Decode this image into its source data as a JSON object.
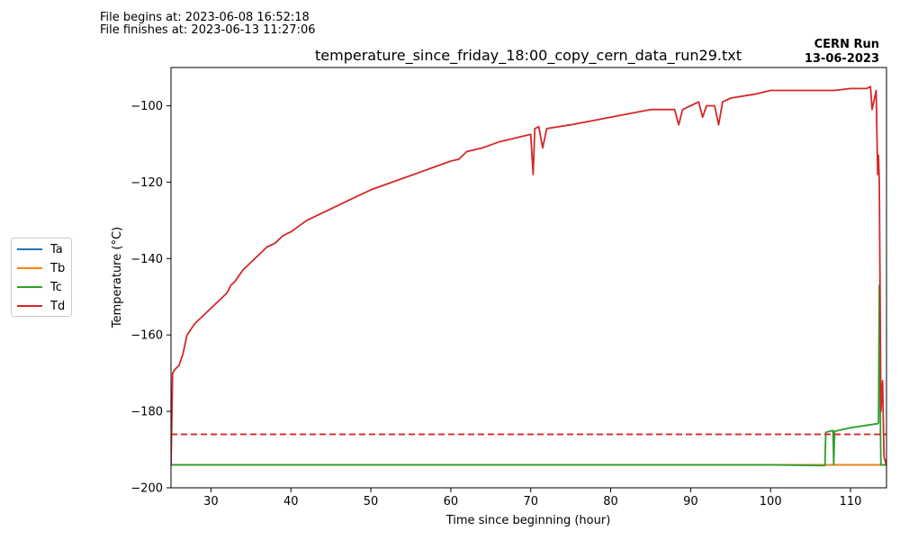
{
  "header": {
    "begin_note": "File begins at: 2023-06-08 16:52:18",
    "end_note": "File finishes at: 2023-06-13 11:27:06",
    "run_label": "CERN Run",
    "run_date": "13-06-2023"
  },
  "chart_data": {
    "type": "line",
    "title": "temperature_since_friday_18:00_copy_cern_data_run29.txt",
    "xlabel": "Time since beginning (hour)",
    "ylabel": "Temperature (°C)",
    "xlim": [
      25,
      114.5
    ],
    "ylim": [
      -200,
      -90
    ],
    "xticks": [
      30,
      40,
      50,
      60,
      70,
      80,
      90,
      100,
      110
    ],
    "yticks": [
      -200,
      -180,
      -160,
      -140,
      -120,
      -100
    ],
    "xtick_labels": [
      "30",
      "40",
      "50",
      "60",
      "70",
      "80",
      "90",
      "100",
      "110"
    ],
    "ytick_labels": [
      "−200",
      "−180",
      "−160",
      "−140",
      "−120",
      "−100"
    ],
    "grid": false,
    "legend_position": "outside-left",
    "reference_line": {
      "y": -186,
      "style": "dashed",
      "color": "#d62728"
    },
    "series": [
      {
        "name": "Ta",
        "color": "#1f77b4",
        "x": [
          25,
          106.9,
          107.1,
          113.7,
          113.9,
          114.5
        ],
        "y": [
          -194,
          -194,
          -194,
          -194,
          -194,
          -194
        ]
      },
      {
        "name": "Tb",
        "color": "#ff7f0e",
        "x": [
          25,
          50,
          80,
          106.9,
          107.1,
          110,
          113.7,
          114.5
        ],
        "y": [
          -194,
          -194,
          -194,
          -194,
          -194,
          -194,
          -194,
          -194
        ]
      },
      {
        "name": "Tc",
        "color": "#2ca02c",
        "x": [
          25,
          60,
          100,
          106.8,
          106.9,
          107.8,
          107.9,
          108.0,
          110,
          113.4,
          113.5,
          113.6,
          113.75,
          113.8,
          114.5
        ],
        "y": [
          -194,
          -194,
          -194,
          -194.2,
          -185.5,
          -185,
          -194,
          -185.2,
          -184.3,
          -183.2,
          -183,
          -147,
          -185,
          -194,
          -194
        ]
      },
      {
        "name": "Td",
        "color": "#d62728",
        "x": [
          25,
          25.2,
          25.5,
          26,
          26.5,
          27,
          28,
          29,
          30,
          31,
          32,
          32.5,
          33,
          34,
          35,
          36,
          37,
          38,
          39,
          40,
          42,
          44,
          46,
          48,
          50,
          52,
          54,
          56,
          58,
          60,
          61,
          62,
          64,
          66,
          68,
          70,
          70.3,
          70.5,
          71,
          71.5,
          72,
          75,
          80,
          85,
          88,
          88.5,
          89,
          90,
          91,
          91.5,
          92,
          93,
          93.5,
          94,
          95,
          98,
          100,
          102,
          105,
          108,
          110,
          112,
          112.5,
          112.7,
          113,
          113.2,
          113.4,
          113.5,
          113.6,
          113.8,
          114,
          114.2,
          114.5
        ],
        "y": [
          -194,
          -170,
          -169,
          -168,
          -165,
          -160,
          -157,
          -155,
          -153,
          -151,
          -149,
          -147,
          -146,
          -143,
          -141,
          -139,
          -137,
          -136,
          -134,
          -133,
          -130,
          -128,
          -126,
          -124,
          -122,
          -120.5,
          -119,
          -117.5,
          -116,
          -114.5,
          -114,
          -112,
          -111,
          -109.5,
          -108.5,
          -107.5,
          -118,
          -106,
          -105.5,
          -111,
          -106,
          -105,
          -103,
          -101,
          -101,
          -105,
          -101,
          -100,
          -99,
          -103,
          -100,
          -100,
          -105,
          -99,
          -98,
          -97,
          -96,
          -96,
          -96,
          -96,
          -95.5,
          -95.5,
          -95,
          -101,
          -98,
          -96,
          -118,
          -113,
          -120,
          -180,
          -172,
          -192,
          -194
        ]
      }
    ]
  }
}
